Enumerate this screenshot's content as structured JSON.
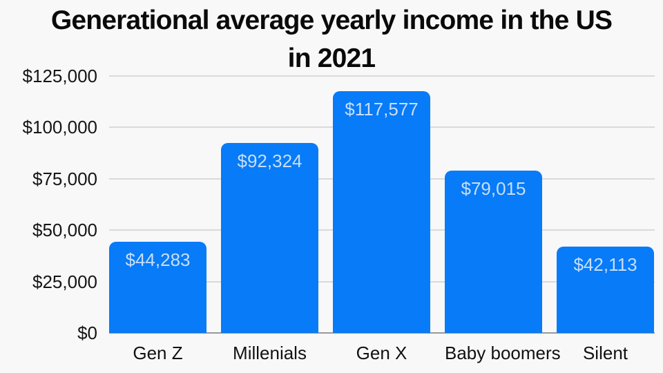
{
  "title": {
    "line1": "Generational average yearly income in the US",
    "line2": "in 2021"
  },
  "chart_data": {
    "type": "bar",
    "title": "Generational average yearly income in the US in 2021",
    "categories": [
      "Gen Z",
      "Millenials",
      "Gen X",
      "Baby boomers",
      "Silent"
    ],
    "values": [
      44283,
      92324,
      117577,
      79015,
      42113
    ],
    "value_labels": [
      "$44,283",
      "$92,324",
      "$117,577",
      "$79,015",
      "$42,113"
    ],
    "y_tick_values": [
      0,
      25000,
      50000,
      75000,
      100000,
      125000
    ],
    "y_tick_labels": [
      "$0",
      "$25,000",
      "$50,000",
      "$75,000",
      "$100,000",
      "$125,000"
    ],
    "ylim": [
      0,
      125000
    ],
    "xlabel": "",
    "ylabel": "",
    "grid": true,
    "legend": "none",
    "background_color": "#f8f8f8",
    "bar_color": "#077bf8",
    "value_label_color": "#c9def8",
    "gridline_color": "#d9d9d9",
    "zero_line_color": "#97989c"
  }
}
